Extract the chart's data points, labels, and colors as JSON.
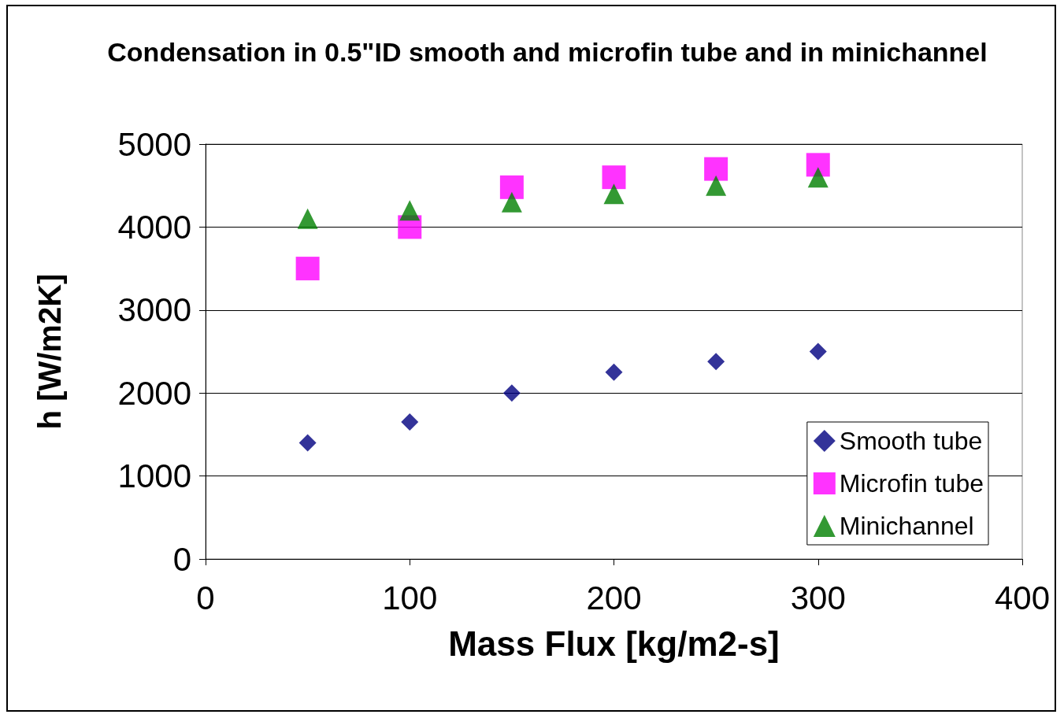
{
  "chart_data": {
    "type": "scatter",
    "title": "Condensation in 0.5\"ID smooth and microfin tube and in minichannel",
    "xlabel": "Mass Flux [kg/m2-s]",
    "ylabel": "h [W/m2K]",
    "x": [
      50,
      100,
      150,
      200,
      250,
      300
    ],
    "series": [
      {
        "name": "Smooth tube",
        "color": "#000080",
        "marker": "diamond",
        "values": [
          1400,
          1650,
          2000,
          2250,
          2380,
          2500
        ]
      },
      {
        "name": "Microfin tube",
        "color": "#ff00ff",
        "marker": "square",
        "values": [
          3500,
          4000,
          4480,
          4600,
          4700,
          4750
        ]
      },
      {
        "name": "Minichannel",
        "color": "#008000",
        "marker": "triangle",
        "values": [
          4100,
          4200,
          4300,
          4400,
          4500,
          4600
        ]
      }
    ],
    "xlim": [
      0,
      400
    ],
    "xticks": [
      0,
      100,
      200,
      300,
      400
    ],
    "ylim": [
      0,
      5000
    ],
    "yticks": [
      0,
      1000,
      2000,
      3000,
      4000,
      5000
    ],
    "grid": "y",
    "legend": "bottom right"
  }
}
